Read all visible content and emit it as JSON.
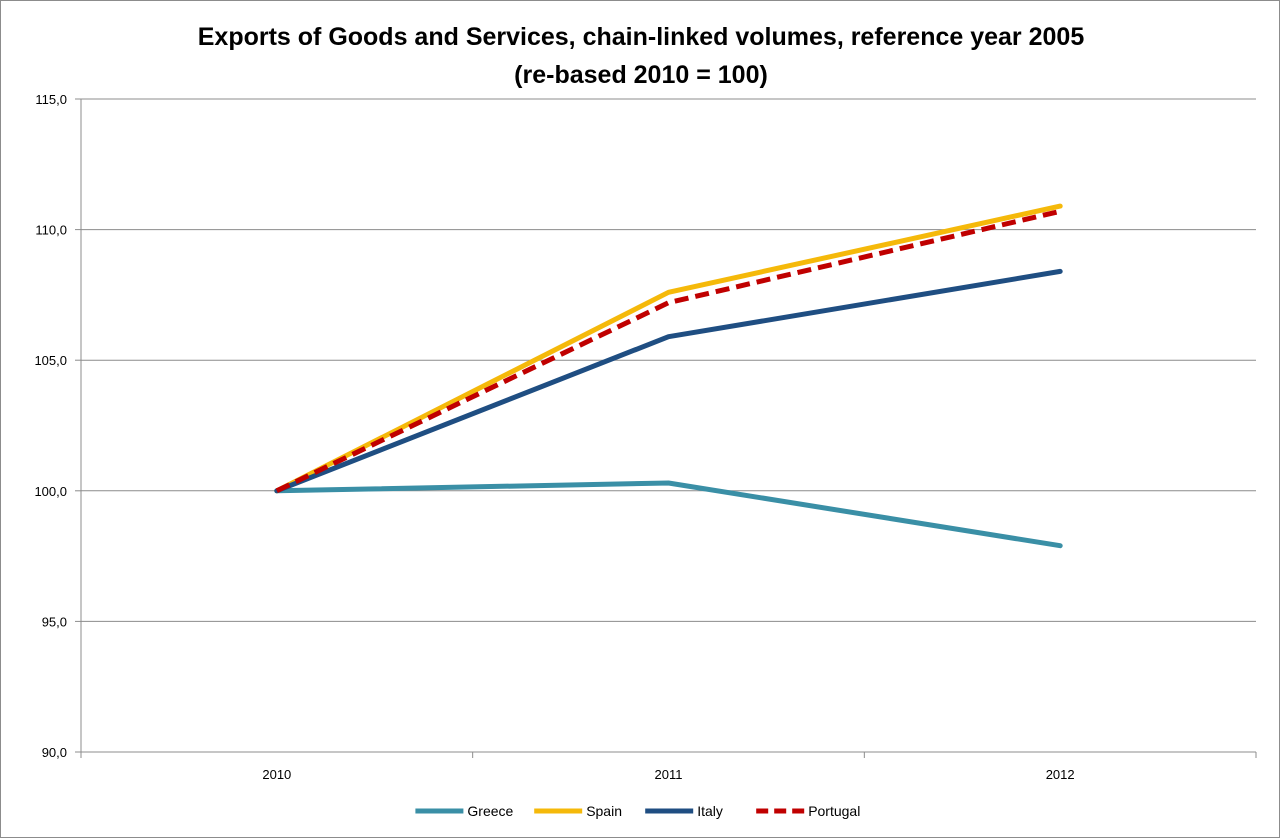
{
  "chart_data": {
    "type": "line",
    "title": "Exports of Goods and Services, chain-linked volumes, reference year 2005",
    "subtitle": "(re-based 2010 = 100)",
    "xlabel": "",
    "ylabel": "",
    "categories": [
      "2010",
      "2011",
      "2012"
    ],
    "ylim": [
      90,
      115
    ],
    "yticks": [
      90,
      95,
      100,
      105,
      110,
      115
    ],
    "ytick_labels": [
      "90,0",
      "95,0",
      "100,0",
      "105,0",
      "110,0",
      "115,0"
    ],
    "grid": true,
    "legend_position": "bottom",
    "series": [
      {
        "name": "Greece",
        "values": [
          100.0,
          100.3,
          97.9
        ],
        "color": "#3a8fa6",
        "dashed": false
      },
      {
        "name": "Spain",
        "values": [
          100.0,
          107.6,
          110.9
        ],
        "color": "#f5b90a",
        "dashed": false
      },
      {
        "name": "Italy",
        "values": [
          100.0,
          105.9,
          108.4
        ],
        "color": "#1f4e82",
        "dashed": false
      },
      {
        "name": "Portugal",
        "values": [
          100.0,
          107.2,
          110.7
        ],
        "color": "#c00000",
        "dashed": true
      }
    ]
  }
}
